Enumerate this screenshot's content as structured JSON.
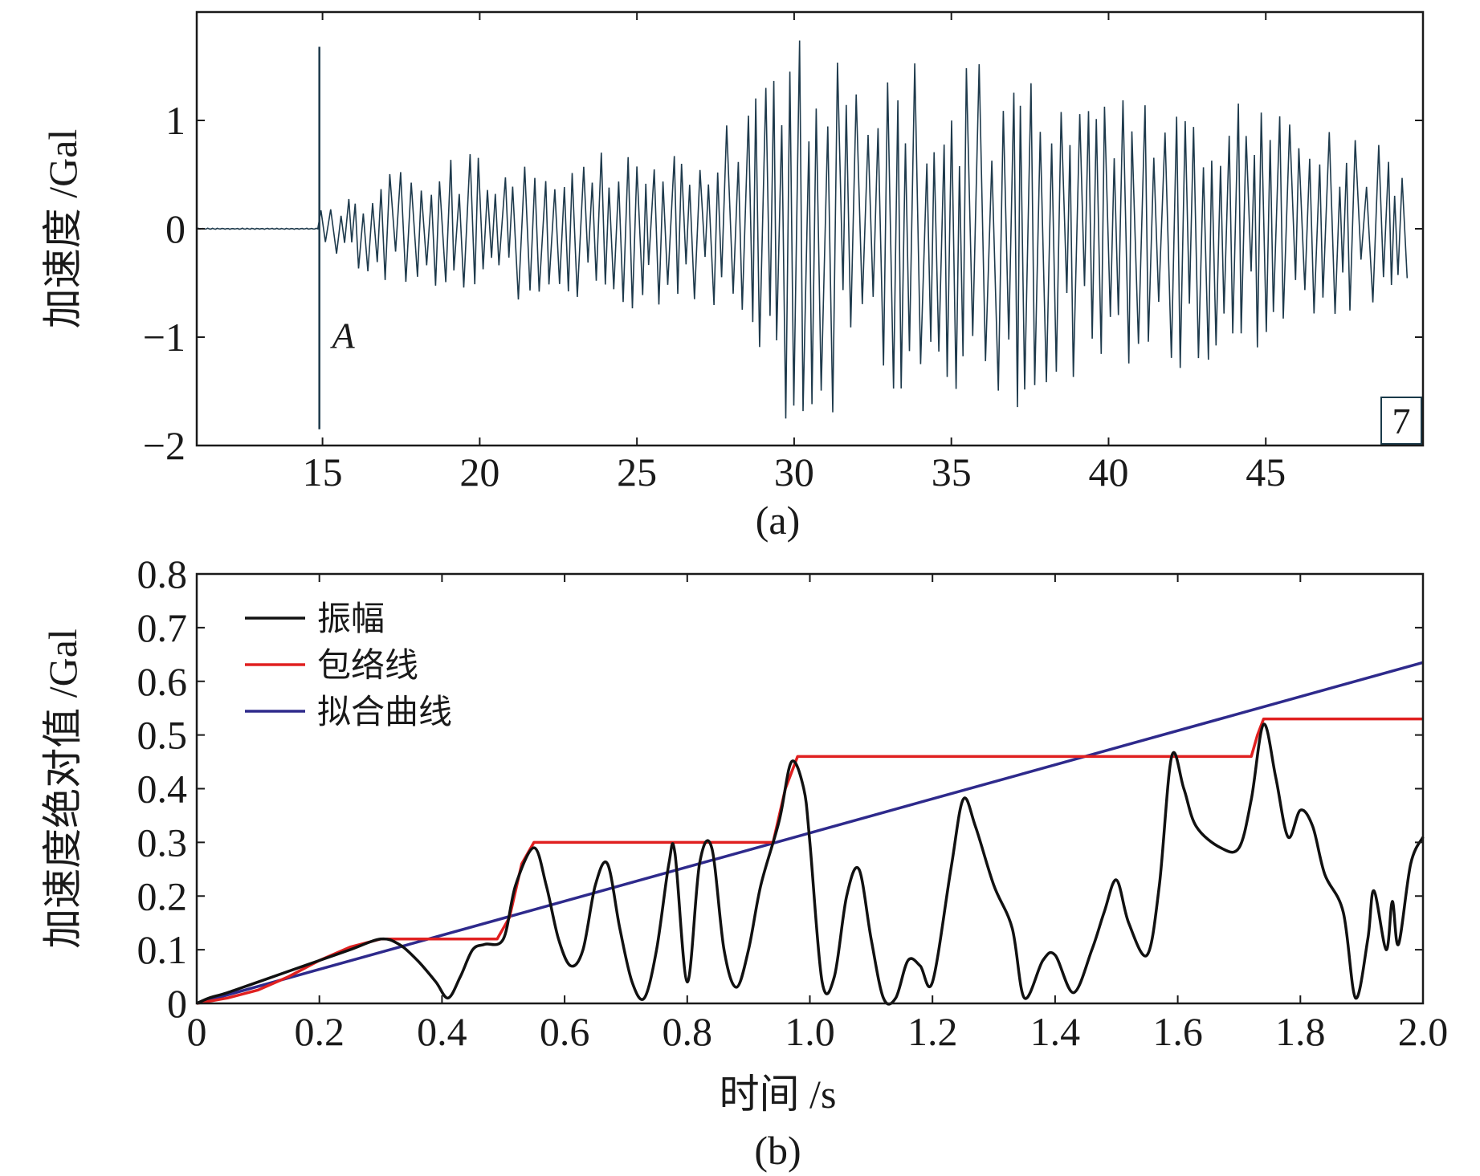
{
  "chart_data": [
    {
      "panel": "a",
      "type": "line",
      "caption": "(a)",
      "ylabel": "加速度 /Gal",
      "xlabel": "",
      "xlim": [
        11,
        50
      ],
      "ylim": [
        -2,
        2
      ],
      "xticks": [
        15,
        20,
        25,
        30,
        35,
        40,
        45
      ],
      "yticks": [
        -2,
        -1,
        0,
        1
      ],
      "ytick_labels": [
        "−2",
        "−1",
        "0",
        "1"
      ],
      "grid": false,
      "annotation": {
        "text": "A",
        "x": 15.0
      },
      "marker_line_x": 14.9,
      "box_label": "7",
      "series_color": "#1e3a4c",
      "noise_level": 0.005,
      "envelope": [
        {
          "x": 15.0,
          "y": 0.2
        },
        {
          "x": 17.0,
          "y": 0.5
        },
        {
          "x": 19.0,
          "y": 0.7
        },
        {
          "x": 22.0,
          "y": 0.65
        },
        {
          "x": 25.0,
          "y": 0.75
        },
        {
          "x": 27.0,
          "y": 0.7
        },
        {
          "x": 28.5,
          "y": 1.2
        },
        {
          "x": 29.8,
          "y": 1.8
        },
        {
          "x": 31.5,
          "y": 1.7
        },
        {
          "x": 33.0,
          "y": 1.6
        },
        {
          "x": 35.0,
          "y": 1.5
        },
        {
          "x": 37.5,
          "y": 1.7
        },
        {
          "x": 40.0,
          "y": 1.2
        },
        {
          "x": 43.0,
          "y": 1.4
        },
        {
          "x": 46.0,
          "y": 1.0
        },
        {
          "x": 49.5,
          "y": 0.7
        }
      ]
    },
    {
      "panel": "b",
      "type": "line",
      "caption": "(b)",
      "xlabel": "时间 /s",
      "ylabel": "加速度绝对值 /Gal",
      "xlim": [
        0,
        2.0
      ],
      "ylim": [
        0,
        0.8
      ],
      "xticks": [
        0,
        0.2,
        0.4,
        0.6,
        0.8,
        1.0,
        1.2,
        1.4,
        1.6,
        1.8,
        2.0
      ],
      "xtick_labels": [
        "0",
        "0.2",
        "0.4",
        "0.6",
        "0.8",
        "1.0",
        "1.2",
        "1.4",
        "1.6",
        "1.8",
        "2.0"
      ],
      "yticks": [
        0,
        0.1,
        0.2,
        0.3,
        0.4,
        0.5,
        0.6,
        0.7,
        0.8
      ],
      "ytick_labels": [
        "0",
        "0.1",
        "0.2",
        "0.3",
        "0.4",
        "0.5",
        "0.6",
        "0.7",
        "0.8"
      ],
      "grid": false,
      "legend_position": "top-left",
      "series": [
        {
          "name": "振幅",
          "color": "#111111",
          "x": [
            0,
            0.02,
            0.05,
            0.1,
            0.15,
            0.2,
            0.25,
            0.3,
            0.33,
            0.36,
            0.39,
            0.41,
            0.43,
            0.45,
            0.47,
            0.5,
            0.52,
            0.55,
            0.57,
            0.59,
            0.61,
            0.63,
            0.65,
            0.67,
            0.69,
            0.71,
            0.73,
            0.75,
            0.77,
            0.78,
            0.8,
            0.82,
            0.84,
            0.86,
            0.88,
            0.9,
            0.92,
            0.95,
            0.97,
            0.99,
            1.0,
            1.02,
            1.04,
            1.06,
            1.08,
            1.1,
            1.12,
            1.14,
            1.16,
            1.18,
            1.2,
            1.23,
            1.25,
            1.27,
            1.3,
            1.33,
            1.35,
            1.38,
            1.4,
            1.43,
            1.46,
            1.48,
            1.5,
            1.52,
            1.55,
            1.57,
            1.59,
            1.61,
            1.63,
            1.67,
            1.7,
            1.72,
            1.74,
            1.76,
            1.78,
            1.8,
            1.82,
            1.84,
            1.87,
            1.89,
            1.91,
            1.92,
            1.94,
            1.95,
            1.96,
            1.98,
            2.0
          ],
          "y": [
            0,
            0.01,
            0.02,
            0.04,
            0.06,
            0.08,
            0.1,
            0.12,
            0.11,
            0.08,
            0.04,
            0.01,
            0.05,
            0.1,
            0.11,
            0.12,
            0.22,
            0.29,
            0.22,
            0.12,
            0.07,
            0.1,
            0.22,
            0.26,
            0.14,
            0.04,
            0.01,
            0.1,
            0.26,
            0.28,
            0.04,
            0.26,
            0.29,
            0.1,
            0.03,
            0.1,
            0.22,
            0.34,
            0.45,
            0.4,
            0.3,
            0.04,
            0.05,
            0.2,
            0.25,
            0.12,
            0.01,
            0.01,
            0.08,
            0.07,
            0.04,
            0.25,
            0.38,
            0.33,
            0.22,
            0.14,
            0.01,
            0.08,
            0.09,
            0.02,
            0.1,
            0.17,
            0.23,
            0.15,
            0.09,
            0.22,
            0.46,
            0.4,
            0.33,
            0.29,
            0.29,
            0.38,
            0.52,
            0.42,
            0.31,
            0.36,
            0.33,
            0.24,
            0.17,
            0.01,
            0.12,
            0.21,
            0.1,
            0.19,
            0.11,
            0.26,
            0.31
          ]
        },
        {
          "name": "包络线",
          "color": "#e02020",
          "x": [
            0,
            0.05,
            0.1,
            0.15,
            0.2,
            0.25,
            0.3,
            0.49,
            0.51,
            0.53,
            0.55,
            0.94,
            0.96,
            0.98,
            1.72,
            1.73,
            1.74,
            2.0
          ],
          "y": [
            0,
            0.01,
            0.025,
            0.05,
            0.08,
            0.105,
            0.12,
            0.12,
            0.16,
            0.26,
            0.3,
            0.3,
            0.4,
            0.46,
            0.46,
            0.5,
            0.53,
            0.53
          ]
        },
        {
          "name": "拟合曲线",
          "color": "#2e2a8c",
          "x": [
            0,
            2.0
          ],
          "y": [
            0,
            0.635
          ]
        }
      ]
    }
  ]
}
